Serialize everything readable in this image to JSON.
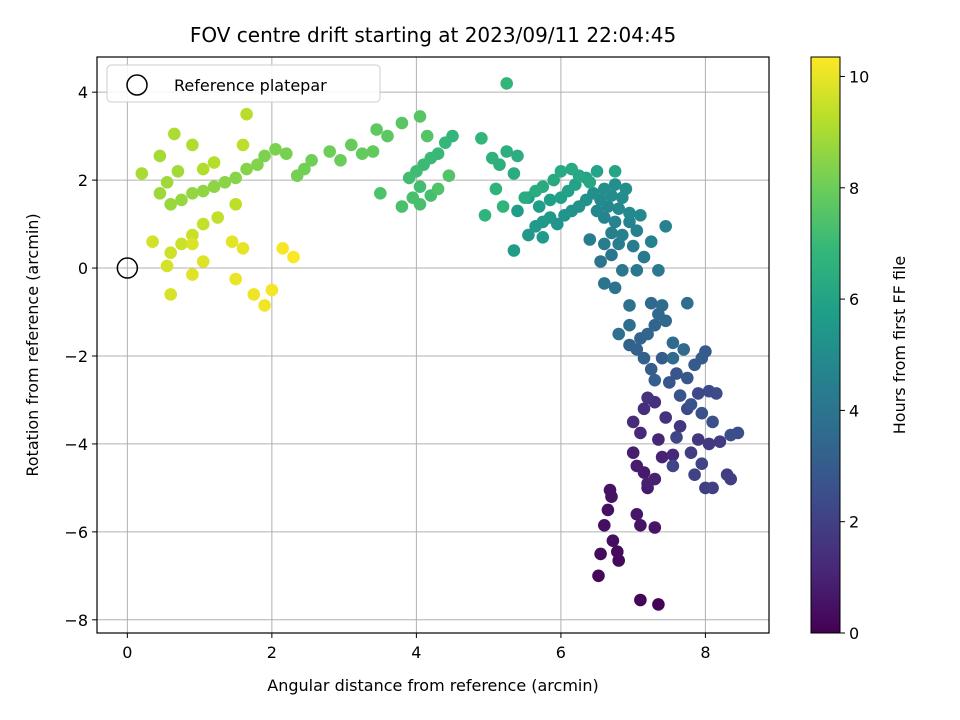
{
  "chart_data": {
    "type": "scatter",
    "title": "FOV centre drift starting at 2023/09/11 22:04:45",
    "xlabel": "Angular distance from reference (arcmin)",
    "ylabel": "Rotation from reference (arcmin)",
    "xlim": [
      -0.42,
      8.88
    ],
    "ylim": [
      -8.3,
      4.8
    ],
    "x_ticks": [
      0,
      2,
      4,
      6,
      8
    ],
    "y_ticks": [
      -8,
      -6,
      -4,
      -2,
      0,
      2,
      4
    ],
    "grid": true,
    "colorbar": {
      "label": "Hours from first FF file",
      "colormap": "viridis",
      "range": [
        0,
        10.35
      ],
      "ticks": [
        0,
        2,
        4,
        6,
        8,
        10
      ]
    },
    "legend": {
      "placement": "top-left",
      "entries": [
        "Reference platepar"
      ]
    },
    "reference_point": {
      "x": 0,
      "y": 0
    },
    "colors": {
      "viridis": [
        "#440154",
        "#482878",
        "#3e4989",
        "#31688e",
        "#26828e",
        "#1f9e89",
        "#35b779",
        "#6ece58",
        "#b5de2b",
        "#fde725"
      ],
      "grid": "#b0b0b0"
    },
    "points": [
      {
        "x": 7.35,
        "y": -7.65,
        "t": 0.1
      },
      {
        "x": 7.1,
        "y": -7.55,
        "t": 0.15
      },
      {
        "x": 6.52,
        "y": -7.0,
        "t": 0.2
      },
      {
        "x": 6.8,
        "y": -6.65,
        "t": 0.25
      },
      {
        "x": 6.78,
        "y": -6.45,
        "t": 0.3
      },
      {
        "x": 6.55,
        "y": -6.5,
        "t": 0.3
      },
      {
        "x": 6.72,
        "y": -6.2,
        "t": 0.35
      },
      {
        "x": 6.6,
        "y": -5.85,
        "t": 0.4
      },
      {
        "x": 6.65,
        "y": -5.5,
        "t": 0.45
      },
      {
        "x": 6.7,
        "y": -5.2,
        "t": 0.5
      },
      {
        "x": 6.68,
        "y": -5.05,
        "t": 0.5
      },
      {
        "x": 7.1,
        "y": -5.85,
        "t": 0.55
      },
      {
        "x": 7.3,
        "y": -5.9,
        "t": 0.6
      },
      {
        "x": 7.05,
        "y": -5.6,
        "t": 0.6
      },
      {
        "x": 7.2,
        "y": -5.0,
        "t": 0.7
      },
      {
        "x": 7.15,
        "y": -4.65,
        "t": 0.75
      },
      {
        "x": 7.05,
        "y": -4.5,
        "t": 0.8
      },
      {
        "x": 7.0,
        "y": -4.2,
        "t": 0.85
      },
      {
        "x": 7.3,
        "y": -4.8,
        "t": 0.9
      },
      {
        "x": 7.2,
        "y": -4.9,
        "t": 0.9
      },
      {
        "x": 7.4,
        "y": -4.3,
        "t": 1.0
      },
      {
        "x": 7.35,
        "y": -3.9,
        "t": 1.1
      },
      {
        "x": 7.55,
        "y": -4.25,
        "t": 1.2
      },
      {
        "x": 7.1,
        "y": -3.75,
        "t": 1.2
      },
      {
        "x": 7.0,
        "y": -3.5,
        "t": 1.3
      },
      {
        "x": 7.15,
        "y": -3.2,
        "t": 1.35
      },
      {
        "x": 7.3,
        "y": -3.05,
        "t": 1.4
      },
      {
        "x": 7.2,
        "y": -2.95,
        "t": 1.45
      },
      {
        "x": 7.45,
        "y": -3.4,
        "t": 1.5
      },
      {
        "x": 7.65,
        "y": -3.6,
        "t": 1.6
      },
      {
        "x": 7.9,
        "y": -3.9,
        "t": 1.7
      },
      {
        "x": 8.05,
        "y": -4.0,
        "t": 1.75
      },
      {
        "x": 8.2,
        "y": -3.95,
        "t": 1.8
      },
      {
        "x": 7.8,
        "y": -4.2,
        "t": 1.85
      },
      {
        "x": 8.3,
        "y": -4.7,
        "t": 1.9
      },
      {
        "x": 8.35,
        "y": -4.8,
        "t": 1.9
      },
      {
        "x": 8.0,
        "y": -5.0,
        "t": 1.95
      },
      {
        "x": 8.1,
        "y": -5.0,
        "t": 2.0
      },
      {
        "x": 7.85,
        "y": -4.7,
        "t": 2.05
      },
      {
        "x": 7.95,
        "y": -4.45,
        "t": 2.1
      },
      {
        "x": 7.55,
        "y": -4.5,
        "t": 2.15
      },
      {
        "x": 7.6,
        "y": -3.85,
        "t": 2.2
      },
      {
        "x": 7.75,
        "y": -3.2,
        "t": 2.25
      },
      {
        "x": 7.9,
        "y": -2.85,
        "t": 2.3
      },
      {
        "x": 8.05,
        "y": -2.8,
        "t": 2.35
      },
      {
        "x": 8.15,
        "y": -2.85,
        "t": 2.4
      },
      {
        "x": 8.35,
        "y": -3.8,
        "t": 2.45
      },
      {
        "x": 8.45,
        "y": -3.75,
        "t": 2.5
      },
      {
        "x": 8.1,
        "y": -3.5,
        "t": 2.55
      },
      {
        "x": 7.95,
        "y": -3.3,
        "t": 2.6
      },
      {
        "x": 7.8,
        "y": -3.1,
        "t": 2.65
      },
      {
        "x": 7.65,
        "y": -2.9,
        "t": 2.7
      },
      {
        "x": 7.5,
        "y": -2.6,
        "t": 2.75
      },
      {
        "x": 7.6,
        "y": -2.4,
        "t": 2.8
      },
      {
        "x": 7.75,
        "y": -2.5,
        "t": 2.85
      },
      {
        "x": 7.85,
        "y": -2.2,
        "t": 2.9
      },
      {
        "x": 8.0,
        "y": -1.9,
        "t": 2.95
      },
      {
        "x": 7.95,
        "y": -2.05,
        "t": 3.0
      },
      {
        "x": 7.4,
        "y": -2.05,
        "t": 3.0
      },
      {
        "x": 7.25,
        "y": -2.3,
        "t": 3.05
      },
      {
        "x": 7.3,
        "y": -2.55,
        "t": 3.1
      },
      {
        "x": 7.15,
        "y": -2.05,
        "t": 3.15
      },
      {
        "x": 7.05,
        "y": -1.85,
        "t": 3.2
      },
      {
        "x": 6.95,
        "y": -1.75,
        "t": 3.25
      },
      {
        "x": 7.1,
        "y": -1.6,
        "t": 3.3
      },
      {
        "x": 7.2,
        "y": -1.5,
        "t": 3.3
      },
      {
        "x": 7.3,
        "y": -1.3,
        "t": 3.35
      },
      {
        "x": 7.45,
        "y": -1.2,
        "t": 3.4
      },
      {
        "x": 7.35,
        "y": -1.05,
        "t": 3.45
      },
      {
        "x": 7.25,
        "y": -0.8,
        "t": 3.5
      },
      {
        "x": 7.55,
        "y": -1.7,
        "t": 3.55
      },
      {
        "x": 7.7,
        "y": -1.85,
        "t": 3.6
      },
      {
        "x": 7.55,
        "y": -2.05,
        "t": 3.6
      },
      {
        "x": 7.4,
        "y": -0.85,
        "t": 3.65
      },
      {
        "x": 7.75,
        "y": -0.8,
        "t": 3.7
      },
      {
        "x": 6.95,
        "y": -1.3,
        "t": 3.75
      },
      {
        "x": 6.8,
        "y": -1.5,
        "t": 3.8
      },
      {
        "x": 6.95,
        "y": -0.85,
        "t": 3.85
      },
      {
        "x": 6.75,
        "y": -0.45,
        "t": 3.9
      },
      {
        "x": 6.6,
        "y": -0.35,
        "t": 3.95
      },
      {
        "x": 6.55,
        "y": 0.15,
        "t": 4.0
      },
      {
        "x": 6.7,
        "y": 0.3,
        "t": 4.05
      },
      {
        "x": 6.85,
        "y": -0.05,
        "t": 4.1
      },
      {
        "x": 7.05,
        "y": -0.05,
        "t": 4.15
      },
      {
        "x": 7.35,
        "y": -0.05,
        "t": 4.2
      },
      {
        "x": 7.15,
        "y": 0.25,
        "t": 4.25
      },
      {
        "x": 7.0,
        "y": 0.5,
        "t": 4.3
      },
      {
        "x": 6.8,
        "y": 0.55,
        "t": 4.3
      },
      {
        "x": 6.6,
        "y": 0.55,
        "t": 4.35
      },
      {
        "x": 6.4,
        "y": 0.65,
        "t": 4.4
      },
      {
        "x": 6.7,
        "y": 0.8,
        "t": 4.45
      },
      {
        "x": 6.85,
        "y": 0.75,
        "t": 4.5
      },
      {
        "x": 7.05,
        "y": 0.85,
        "t": 4.5
      },
      {
        "x": 7.25,
        "y": 0.6,
        "t": 4.55
      },
      {
        "x": 7.45,
        "y": 0.95,
        "t": 4.6
      },
      {
        "x": 6.95,
        "y": 1.05,
        "t": 4.65
      },
      {
        "x": 6.75,
        "y": 1.05,
        "t": 4.7
      },
      {
        "x": 6.6,
        "y": 1.15,
        "t": 4.7
      },
      {
        "x": 6.5,
        "y": 1.3,
        "t": 4.75
      },
      {
        "x": 6.65,
        "y": 1.4,
        "t": 4.8
      },
      {
        "x": 6.8,
        "y": 1.35,
        "t": 4.85
      },
      {
        "x": 6.95,
        "y": 1.25,
        "t": 4.9
      },
      {
        "x": 7.1,
        "y": 1.2,
        "t": 4.9
      },
      {
        "x": 6.55,
        "y": 1.55,
        "t": 4.95
      },
      {
        "x": 6.7,
        "y": 1.65,
        "t": 5.0
      },
      {
        "x": 6.85,
        "y": 1.6,
        "t": 5.0
      },
      {
        "x": 6.9,
        "y": 1.8,
        "t": 5.05
      },
      {
        "x": 6.75,
        "y": 1.9,
        "t": 5.1
      },
      {
        "x": 6.6,
        "y": 1.8,
        "t": 5.1
      },
      {
        "x": 6.45,
        "y": 1.7,
        "t": 5.15
      },
      {
        "x": 6.35,
        "y": 1.55,
        "t": 5.2
      },
      {
        "x": 6.25,
        "y": 1.4,
        "t": 5.25
      },
      {
        "x": 6.15,
        "y": 1.3,
        "t": 5.3
      },
      {
        "x": 6.05,
        "y": 1.2,
        "t": 5.35
      },
      {
        "x": 5.95,
        "y": 1.0,
        "t": 5.4
      },
      {
        "x": 5.85,
        "y": 1.15,
        "t": 5.45
      },
      {
        "x": 5.75,
        "y": 1.05,
        "t": 5.5
      },
      {
        "x": 5.65,
        "y": 0.95,
        "t": 5.5
      },
      {
        "x": 5.55,
        "y": 0.75,
        "t": 5.55
      },
      {
        "x": 5.75,
        "y": 0.7,
        "t": 5.6
      },
      {
        "x": 5.35,
        "y": 0.4,
        "t": 5.65
      },
      {
        "x": 5.4,
        "y": 1.3,
        "t": 5.7
      },
      {
        "x": 5.55,
        "y": 1.6,
        "t": 5.75
      },
      {
        "x": 5.7,
        "y": 1.4,
        "t": 5.75
      },
      {
        "x": 5.85,
        "y": 1.55,
        "t": 5.8
      },
      {
        "x": 6.0,
        "y": 1.6,
        "t": 5.85
      },
      {
        "x": 6.1,
        "y": 1.75,
        "t": 5.9
      },
      {
        "x": 6.2,
        "y": 1.9,
        "t": 5.95
      },
      {
        "x": 6.35,
        "y": 2.05,
        "t": 6.0
      },
      {
        "x": 6.5,
        "y": 2.2,
        "t": 6.0
      },
      {
        "x": 6.75,
        "y": 2.2,
        "t": 6.05
      },
      {
        "x": 6.4,
        "y": 1.95,
        "t": 6.1
      },
      {
        "x": 6.25,
        "y": 2.1,
        "t": 6.15
      },
      {
        "x": 6.15,
        "y": 2.25,
        "t": 6.2
      },
      {
        "x": 6.0,
        "y": 2.2,
        "t": 6.2
      },
      {
        "x": 5.9,
        "y": 2.0,
        "t": 6.25
      },
      {
        "x": 5.75,
        "y": 1.85,
        "t": 6.3
      },
      {
        "x": 5.65,
        "y": 1.75,
        "t": 6.35
      },
      {
        "x": 5.5,
        "y": 1.6,
        "t": 6.35
      },
      {
        "x": 5.35,
        "y": 2.15,
        "t": 6.4
      },
      {
        "x": 5.4,
        "y": 2.55,
        "t": 6.45
      },
      {
        "x": 5.25,
        "y": 2.65,
        "t": 6.5
      },
      {
        "x": 5.15,
        "y": 2.35,
        "t": 6.55
      },
      {
        "x": 5.05,
        "y": 2.5,
        "t": 6.6
      },
      {
        "x": 5.1,
        "y": 1.8,
        "t": 6.65
      },
      {
        "x": 4.95,
        "y": 1.2,
        "t": 6.7
      },
      {
        "x": 5.2,
        "y": 1.4,
        "t": 6.7
      },
      {
        "x": 4.9,
        "y": 2.95,
        "t": 6.75
      },
      {
        "x": 5.25,
        "y": 4.2,
        "t": 6.8
      },
      {
        "x": 4.5,
        "y": 3.0,
        "t": 6.85
      },
      {
        "x": 4.4,
        "y": 2.85,
        "t": 6.9
      },
      {
        "x": 4.3,
        "y": 2.6,
        "t": 6.95
      },
      {
        "x": 4.2,
        "y": 2.5,
        "t": 7.0
      },
      {
        "x": 4.1,
        "y": 2.35,
        "t": 7.05
      },
      {
        "x": 4.0,
        "y": 2.2,
        "t": 7.1
      },
      {
        "x": 3.9,
        "y": 2.05,
        "t": 7.15
      },
      {
        "x": 4.05,
        "y": 1.85,
        "t": 7.2
      },
      {
        "x": 4.2,
        "y": 1.65,
        "t": 7.25
      },
      {
        "x": 4.05,
        "y": 1.45,
        "t": 7.3
      },
      {
        "x": 3.95,
        "y": 1.6,
        "t": 7.3
      },
      {
        "x": 3.8,
        "y": 1.4,
        "t": 7.35
      },
      {
        "x": 3.5,
        "y": 1.7,
        "t": 7.4
      },
      {
        "x": 4.3,
        "y": 1.8,
        "t": 7.45
      },
      {
        "x": 4.45,
        "y": 2.1,
        "t": 7.5
      },
      {
        "x": 4.15,
        "y": 3.0,
        "t": 7.55
      },
      {
        "x": 4.05,
        "y": 3.45,
        "t": 7.6
      },
      {
        "x": 3.8,
        "y": 3.3,
        "t": 7.65
      },
      {
        "x": 3.6,
        "y": 3.0,
        "t": 7.7
      },
      {
        "x": 3.45,
        "y": 3.15,
        "t": 7.75
      },
      {
        "x": 3.4,
        "y": 2.65,
        "t": 7.8
      },
      {
        "x": 3.25,
        "y": 2.6,
        "t": 7.85
      },
      {
        "x": 3.1,
        "y": 2.8,
        "t": 7.9
      },
      {
        "x": 2.95,
        "y": 2.45,
        "t": 7.95
      },
      {
        "x": 2.8,
        "y": 2.65,
        "t": 8.0
      },
      {
        "x": 2.55,
        "y": 2.45,
        "t": 8.05
      },
      {
        "x": 2.45,
        "y": 2.25,
        "t": 8.1
      },
      {
        "x": 2.35,
        "y": 2.1,
        "t": 8.15
      },
      {
        "x": 2.2,
        "y": 2.6,
        "t": 8.2
      },
      {
        "x": 2.05,
        "y": 2.7,
        "t": 8.25
      },
      {
        "x": 1.9,
        "y": 2.55,
        "t": 8.3
      },
      {
        "x": 1.8,
        "y": 2.35,
        "t": 8.35
      },
      {
        "x": 1.65,
        "y": 2.25,
        "t": 8.4
      },
      {
        "x": 1.5,
        "y": 2.05,
        "t": 8.45
      },
      {
        "x": 1.35,
        "y": 1.95,
        "t": 8.5
      },
      {
        "x": 1.2,
        "y": 1.85,
        "t": 8.55
      },
      {
        "x": 1.05,
        "y": 1.75,
        "t": 8.6
      },
      {
        "x": 0.9,
        "y": 1.7,
        "t": 8.65
      },
      {
        "x": 0.75,
        "y": 1.55,
        "t": 8.7
      },
      {
        "x": 0.6,
        "y": 1.45,
        "t": 8.75
      },
      {
        "x": 0.45,
        "y": 1.7,
        "t": 8.8
      },
      {
        "x": 0.55,
        "y": 1.95,
        "t": 8.85
      },
      {
        "x": 0.7,
        "y": 2.2,
        "t": 8.9
      },
      {
        "x": 0.45,
        "y": 2.55,
        "t": 8.95
      },
      {
        "x": 0.2,
        "y": 2.15,
        "t": 9.0
      },
      {
        "x": 0.65,
        "y": 3.05,
        "t": 9.05
      },
      {
        "x": 0.9,
        "y": 2.8,
        "t": 9.1
      },
      {
        "x": 1.05,
        "y": 2.25,
        "t": 9.15
      },
      {
        "x": 1.2,
        "y": 2.4,
        "t": 9.2
      },
      {
        "x": 1.65,
        "y": 3.5,
        "t": 9.25
      },
      {
        "x": 1.6,
        "y": 2.8,
        "t": 9.3
      },
      {
        "x": 1.5,
        "y": 1.45,
        "t": 9.35
      },
      {
        "x": 1.25,
        "y": 1.15,
        "t": 9.4
      },
      {
        "x": 1.05,
        "y": 1.0,
        "t": 9.45
      },
      {
        "x": 0.9,
        "y": 0.75,
        "t": 9.5
      },
      {
        "x": 0.75,
        "y": 0.55,
        "t": 9.55
      },
      {
        "x": 0.6,
        "y": 0.35,
        "t": 9.6
      },
      {
        "x": 0.35,
        "y": 0.6,
        "t": 9.65
      },
      {
        "x": 0.55,
        "y": 0.05,
        "t": 9.7
      },
      {
        "x": 0.6,
        "y": -0.6,
        "t": 9.75
      },
      {
        "x": 0.9,
        "y": 0.55,
        "t": 9.8
      },
      {
        "x": 1.05,
        "y": 0.15,
        "t": 9.85
      },
      {
        "x": 0.9,
        "y": -0.15,
        "t": 9.9
      },
      {
        "x": 1.45,
        "y": 0.6,
        "t": 9.95
      },
      {
        "x": 1.6,
        "y": 0.45,
        "t": 10.0
      },
      {
        "x": 1.5,
        "y": -0.25,
        "t": 10.05
      },
      {
        "x": 1.75,
        "y": -0.6,
        "t": 10.1
      },
      {
        "x": 1.9,
        "y": -0.85,
        "t": 10.15
      },
      {
        "x": 2.0,
        "y": -0.5,
        "t": 10.2
      },
      {
        "x": 2.15,
        "y": 0.45,
        "t": 10.25
      },
      {
        "x": 2.3,
        "y": 0.25,
        "t": 10.3
      }
    ]
  }
}
